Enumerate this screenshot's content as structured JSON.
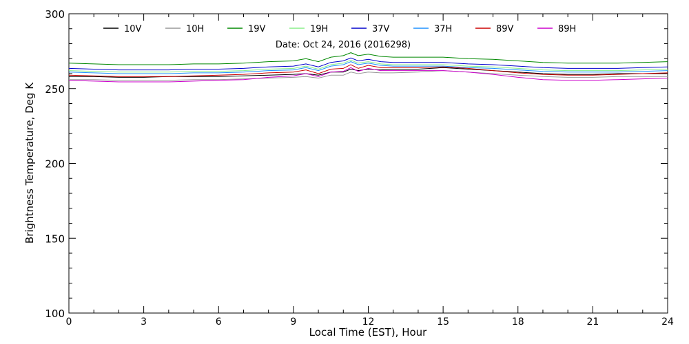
{
  "chart_data": {
    "type": "line",
    "subtitle": "Date: Oct 24, 2016 (2016298)",
    "xlabel": "Local Time (EST), Hour",
    "ylabel": "Brightness Temperature, Deg K",
    "xlim": [
      0,
      24
    ],
    "ylim": [
      100,
      300
    ],
    "xticks": [
      "0",
      "3",
      "6",
      "9",
      "12",
      "15",
      "18",
      "21",
      "24"
    ],
    "yticks": [
      "100",
      "150",
      "200",
      "250",
      "300"
    ],
    "grid": false,
    "legend_position": "top",
    "x": [
      0,
      1,
      2,
      3,
      4,
      5,
      6,
      7,
      8,
      9,
      9.5,
      10,
      10.5,
      11,
      11.3,
      11.6,
      12,
      12.5,
      13,
      14,
      15,
      16,
      17,
      18,
      19,
      20,
      21,
      22,
      23,
      24
    ],
    "series": [
      {
        "name": "10V",
        "color": "#000000",
        "values": [
          258,
          258,
          257.5,
          257.5,
          258,
          258,
          258,
          258.5,
          259,
          259.5,
          260,
          259,
          261,
          261,
          263,
          262,
          263,
          262.5,
          263,
          263,
          264,
          263,
          262,
          261,
          260,
          259.5,
          259.5,
          260,
          260,
          260
        ]
      },
      {
        "name": "10H",
        "color": "#999999",
        "values": [
          256,
          256,
          255.5,
          255.5,
          255.5,
          256,
          256,
          256.5,
          257,
          257.5,
          258,
          257,
          259,
          259,
          261,
          260,
          261,
          260.5,
          260.5,
          261,
          262,
          261,
          260,
          259,
          258,
          257.5,
          257.5,
          258,
          258,
          258
        ]
      },
      {
        "name": "19V",
        "color": "#008800",
        "values": [
          267,
          266.5,
          266,
          266,
          266,
          266.5,
          266.5,
          267,
          268,
          268.5,
          270,
          268,
          271,
          272,
          274,
          272,
          273,
          271.5,
          271,
          271,
          271,
          270,
          269.5,
          268.5,
          267.5,
          267,
          267,
          267,
          267.5,
          268
        ]
      },
      {
        "name": "19H",
        "color": "#88ee88",
        "values": [
          262,
          261.5,
          261,
          261,
          261,
          261.5,
          261.5,
          262,
          263,
          263.5,
          265,
          263,
          266,
          267,
          269,
          267,
          268,
          266.5,
          266,
          266,
          266,
          265,
          264.5,
          263.5,
          262.5,
          262,
          262,
          262,
          262.5,
          263
        ]
      },
      {
        "name": "37V",
        "color": "#0000cc",
        "values": [
          263.5,
          263,
          262.5,
          262.5,
          262.5,
          263,
          263,
          263.5,
          264.5,
          265,
          266.5,
          264.5,
          267.5,
          268.5,
          270.5,
          268.5,
          269.5,
          268,
          267.5,
          267.5,
          267.5,
          266.5,
          266,
          265,
          264,
          263.5,
          263.5,
          263.5,
          264,
          264.5
        ]
      },
      {
        "name": "37H",
        "color": "#1e90ff",
        "values": [
          261,
          260.5,
          260,
          260,
          260,
          260.5,
          260.5,
          261,
          262,
          262.5,
          264,
          262,
          265,
          266,
          268,
          266,
          267,
          265.5,
          265,
          265,
          265,
          264,
          263.5,
          262.5,
          261.5,
          261,
          261,
          261,
          261.5,
          262
        ]
      },
      {
        "name": "89V",
        "color": "#cc0000",
        "values": [
          259,
          258.5,
          258,
          258,
          258,
          258.5,
          259,
          259.5,
          260.5,
          261,
          262.5,
          260,
          263,
          263.5,
          266,
          263.5,
          265.5,
          264,
          264,
          264,
          264.5,
          263.5,
          262,
          260.5,
          259.5,
          259,
          259,
          259.5,
          260,
          260.5
        ]
      },
      {
        "name": "89H",
        "color": "#cc00cc",
        "values": [
          255.5,
          255,
          254.5,
          254.5,
          254.5,
          255,
          255.5,
          256,
          257.5,
          258.5,
          260,
          258,
          261,
          261.5,
          264,
          261.5,
          263.5,
          262,
          262,
          262,
          262,
          261,
          259.5,
          257.5,
          256,
          255.5,
          255.5,
          256,
          256.5,
          257
        ]
      }
    ]
  }
}
